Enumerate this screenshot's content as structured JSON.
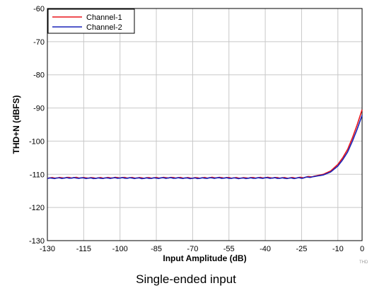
{
  "chart_data": {
    "type": "line",
    "title": "",
    "xlabel": "Input Amplitude (dB)",
    "ylabel": "THD+N (dBFS)",
    "xlim": [
      -130,
      0
    ],
    "ylim": [
      -130,
      -60
    ],
    "xticks": [
      -130,
      -115,
      -100,
      -85,
      -70,
      -55,
      -40,
      -25,
      -10,
      0
    ],
    "yticks": [
      -60,
      -70,
      -80,
      -90,
      -100,
      -110,
      -120,
      -130
    ],
    "grid": true,
    "legend": "top-left",
    "series": [
      {
        "name": "Channel-1",
        "color": "#e8151b",
        "x": [
          -130,
          -120,
          -110,
          -100,
          -90,
          -80,
          -70,
          -60,
          -50,
          -40,
          -30,
          -25,
          -20,
          -16,
          -13,
          -10,
          -8,
          -6,
          -4,
          -2,
          0
        ],
        "y": [
          -111.1,
          -111.0,
          -111.1,
          -111.0,
          -111.1,
          -111.0,
          -111.1,
          -111.0,
          -111.1,
          -111.0,
          -111.1,
          -111.0,
          -110.6,
          -110.0,
          -109.0,
          -107.0,
          -105.0,
          -102.5,
          -99.0,
          -95.0,
          -90.5
        ]
      },
      {
        "name": "Channel-2",
        "color": "#1a23b8",
        "x": [
          -130,
          -120,
          -110,
          -100,
          -90,
          -80,
          -70,
          -60,
          -50,
          -40,
          -30,
          -25,
          -20,
          -16,
          -13,
          -10,
          -8,
          -6,
          -4,
          -2,
          0
        ],
        "y": [
          -111.2,
          -111.1,
          -111.2,
          -111.1,
          -111.2,
          -111.1,
          -111.2,
          -111.1,
          -111.2,
          -111.1,
          -111.2,
          -111.1,
          -110.7,
          -110.2,
          -109.3,
          -107.5,
          -105.6,
          -103.3,
          -100.0,
          -96.3,
          -92.2
        ]
      }
    ]
  },
  "watermark": "THD",
  "caption": "Single-ended input"
}
